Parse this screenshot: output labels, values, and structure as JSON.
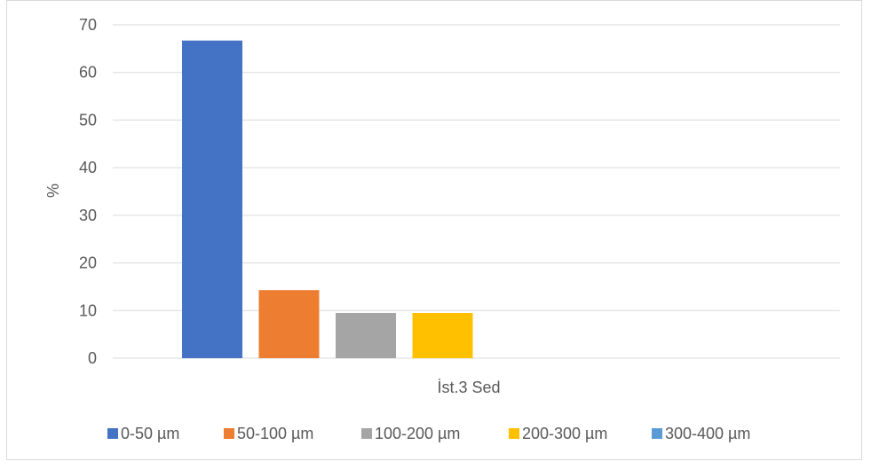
{
  "chart_data": {
    "type": "bar",
    "categories": [
      "İst.3 Sed"
    ],
    "series": [
      {
        "name": "0-50 µm",
        "values": [
          66.7
        ],
        "color": "#4472C4"
      },
      {
        "name": "50-100 µm",
        "values": [
          14.3
        ],
        "color": "#ED7D31"
      },
      {
        "name": "100-200 µm",
        "values": [
          9.5
        ],
        "color": "#A5A5A5"
      },
      {
        "name": "200-300 µm",
        "values": [
          9.5
        ],
        "color": "#FFC000"
      },
      {
        "name": "300-400 µm",
        "values": [
          0
        ],
        "color": "#5B9BD5"
      }
    ],
    "ylabel": "%",
    "xlabel": "",
    "ylim": [
      0,
      70
    ],
    "yticks": [
      0,
      10,
      20,
      30,
      40,
      50,
      60,
      70
    ],
    "grid": true,
    "legend_position": "bottom"
  }
}
